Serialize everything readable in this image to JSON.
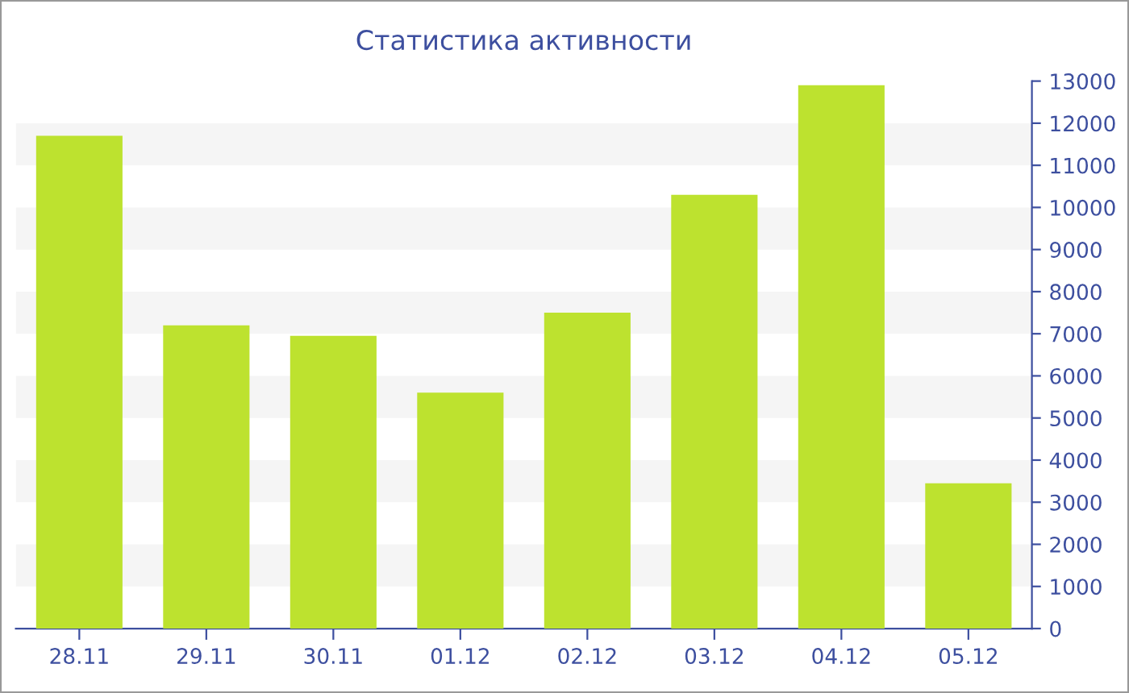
{
  "chart_data": {
    "type": "bar",
    "title": "Статистика активности",
    "categories": [
      "28.11",
      "29.11",
      "30.11",
      "01.12",
      "02.12",
      "03.12",
      "04.12",
      "05.12"
    ],
    "values": [
      11700,
      7200,
      6950,
      5600,
      7500,
      10300,
      12900,
      3450
    ],
    "color": "#bde22f",
    "ylim": [
      0,
      13000
    ],
    "yticks": [
      0,
      1000,
      2000,
      3000,
      4000,
      5000,
      6000,
      7000,
      8000,
      9000,
      10000,
      11000,
      12000,
      13000
    ],
    "bands": [
      {
        "axis": "y",
        "from": 1000,
        "to": 2000,
        "color": "#f5f5f5"
      },
      {
        "axis": "y",
        "from": 3000,
        "to": 4000,
        "color": "#f5f5f5"
      },
      {
        "axis": "y",
        "from": 5000,
        "to": 6000,
        "color": "#f5f5f5"
      },
      {
        "axis": "y",
        "from": 7000,
        "to": 8000,
        "color": "#f5f5f5"
      },
      {
        "axis": "y",
        "from": 9000,
        "to": 10000,
        "color": "#f5f5f5"
      },
      {
        "axis": "y",
        "from": 11000,
        "to": 12000,
        "color": "#f5f5f5"
      }
    ]
  }
}
